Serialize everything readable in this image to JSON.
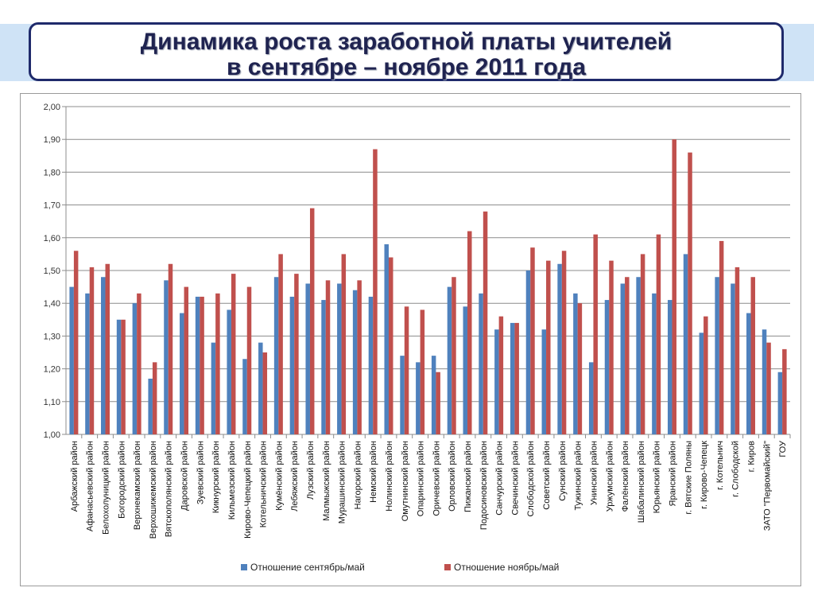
{
  "header": {
    "title_line1": "Динамика роста заработной платы учителей",
    "title_line2": "в сентябре – ноябре 2011 года"
  },
  "colors": {
    "series1": "#4f81bd",
    "series2": "#c0504d"
  },
  "chart_data": {
    "type": "bar",
    "title": "Динамика роста заработной платы учителей в сентябре – ноябре 2011 года",
    "xlabel": "",
    "ylabel": "",
    "ylim": [
      1.0,
      2.0
    ],
    "yticks": [
      "1,00",
      "1,10",
      "1,20",
      "1,30",
      "1,40",
      "1,50",
      "1,60",
      "1,70",
      "1,80",
      "1,90",
      "2,00"
    ],
    "grid": true,
    "legend_position": "bottom",
    "categories": [
      "Арбажский район",
      "Афанасьевский район",
      "Белохолуницкий район",
      "Богородский район",
      "Верхнекамский район",
      "Верхошижемский район",
      "Вятскополянский район",
      "Даровской район",
      "Зуевский район",
      "Кикнурский район",
      "Кильмезский район",
      "Кирово-Чепецкий район",
      "Котельничский район",
      "Кумёнский район",
      "Лебяжский район",
      "Лузский район",
      "Малмыжский район",
      "Мурашинский район",
      "Нагорский район",
      "Немский район",
      "Нолинский район",
      "Омутнинский район",
      "Опаринский район",
      "Оричевский район",
      "Орловский район",
      "Пижанский район",
      "Подосиновский район",
      "Санчурский район",
      "Свечинский район",
      "Слободской район",
      "Советский район",
      "Сунский район",
      "Тужинский район",
      "Унинский район",
      "Уржумский район",
      "Фалёнский район",
      "Шабалинский район",
      "Юрьянский район",
      "Яранский район",
      "г. Вятские Поляны",
      "г. Кирово-Чепецк",
      "г. Котельнич",
      "г. Слободской",
      "г. Киров",
      "ЗАТО \"Первомайский\"",
      "ГОУ"
    ],
    "series": [
      {
        "name": "Отношение сентябрь/май",
        "values": [
          1.45,
          1.43,
          1.48,
          1.35,
          1.4,
          1.17,
          1.47,
          1.37,
          1.42,
          1.28,
          1.38,
          1.23,
          1.28,
          1.48,
          1.42,
          1.46,
          1.41,
          1.46,
          1.44,
          1.42,
          1.58,
          1.24,
          1.22,
          1.24,
          1.45,
          1.39,
          1.43,
          1.32,
          1.34,
          1.5,
          1.32,
          1.52,
          1.43,
          1.22,
          1.41,
          1.46,
          1.48,
          1.43,
          1.41,
          1.55,
          1.31,
          1.48,
          1.46,
          1.37,
          1.32,
          1.19
        ]
      },
      {
        "name": "Отношение ноябрь/май",
        "values": [
          1.56,
          1.51,
          1.52,
          1.35,
          1.43,
          1.22,
          1.52,
          1.45,
          1.42,
          1.43,
          1.49,
          1.45,
          1.25,
          1.55,
          1.49,
          1.69,
          1.47,
          1.55,
          1.47,
          1.87,
          1.54,
          1.39,
          1.38,
          1.19,
          1.48,
          1.62,
          1.68,
          1.36,
          1.34,
          1.57,
          1.53,
          1.56,
          1.4,
          1.61,
          1.53,
          1.48,
          1.55,
          1.61,
          1.9,
          1.86,
          1.36,
          1.59,
          1.51,
          1.48,
          1.28,
          1.26
        ]
      }
    ]
  }
}
